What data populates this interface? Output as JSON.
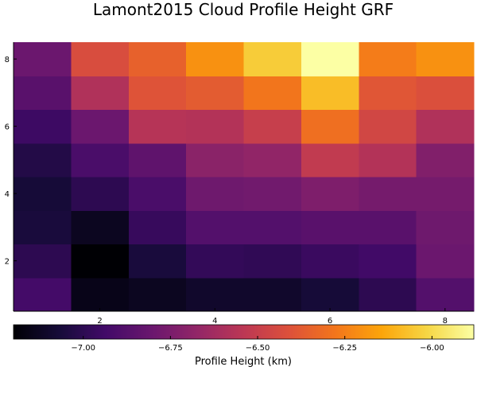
{
  "chart_data": {
    "type": "heatmap",
    "title": "Lamont2015 Cloud Profile Height GRF",
    "xlabel": "",
    "ylabel": "",
    "x": [
      1,
      2,
      3,
      4,
      5,
      6,
      7,
      8
    ],
    "y": [
      1,
      2,
      3,
      4,
      5,
      6,
      7,
      8
    ],
    "xlim": [
      0.5,
      8.5
    ],
    "ylim": [
      0.5,
      8.5
    ],
    "x_ticks": [
      2,
      4,
      6,
      8
    ],
    "y_ticks": [
      2,
      4,
      6,
      8
    ],
    "values": [
      [
        -6.93,
        -7.15,
        -7.13,
        -7.1,
        -7.1,
        -7.07,
        -7.0,
        -6.88
      ],
      [
        -7.0,
        -7.2,
        -7.06,
        -6.98,
        -6.99,
        -6.96,
        -6.94,
        -6.8
      ],
      [
        -7.06,
        -7.13,
        -6.97,
        -6.88,
        -6.88,
        -6.86,
        -6.86,
        -6.79
      ],
      [
        -7.07,
        -7.0,
        -6.91,
        -6.79,
        -6.78,
        -6.74,
        -6.77,
        -6.77
      ],
      [
        -7.03,
        -6.91,
        -6.84,
        -6.7,
        -6.68,
        -6.52,
        -6.57,
        -6.73
      ],
      [
        -6.95,
        -6.8,
        -6.56,
        -6.57,
        -6.5,
        -6.3,
        -6.46,
        -6.58
      ],
      [
        -6.86,
        -6.58,
        -6.4,
        -6.37,
        -6.28,
        -6.08,
        -6.39,
        -6.42
      ],
      [
        -6.8,
        -6.43,
        -6.35,
        -6.2,
        -6.04,
        -5.88,
        -6.26,
        -6.2
      ]
    ],
    "colorscale": "inferno",
    "zlim": [
      -7.2,
      -5.88
    ],
    "colorbar": {
      "orientation": "horizontal",
      "label": "Profile Height (km)",
      "ticks": [
        -7.0,
        -6.75,
        -6.5,
        -6.25,
        -6.0
      ],
      "tick_labels": [
        "−7.00",
        "−6.75",
        "−6.50",
        "−6.25",
        "−6.00"
      ]
    },
    "grid": false,
    "legend": "none"
  }
}
